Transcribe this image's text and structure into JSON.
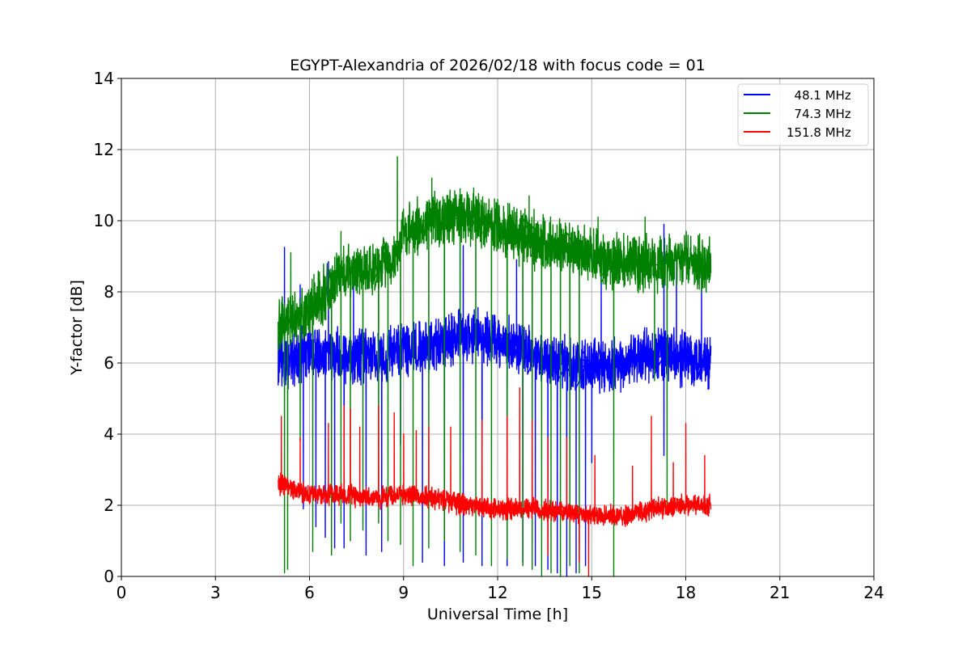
{
  "chart_data": {
    "type": "line",
    "title": "EGYPT-Alexandria of 2026/02/18 with focus code = 01",
    "xlabel": "Universal Time [h]",
    "ylabel": "Y-factor [dB]",
    "xlim": [
      0,
      24
    ],
    "ylim": [
      0,
      14
    ],
    "x_ticks": [
      "0",
      "3",
      "6",
      "9",
      "12",
      "15",
      "18",
      "21",
      "24"
    ],
    "y_ticks": [
      "0",
      "2",
      "4",
      "6",
      "8",
      "10",
      "12",
      "14"
    ],
    "grid": true,
    "legend_position": "top-right",
    "x_start": 5.0,
    "x_end": 18.8,
    "series": [
      {
        "name": "  48.1 MHz",
        "color": "#0000ff",
        "baseline": [
          [
            5.0,
            6.0
          ],
          [
            6.0,
            6.3
          ],
          [
            8.0,
            6.2
          ],
          [
            9.0,
            6.3
          ],
          [
            10.0,
            6.5
          ],
          [
            11.0,
            6.8
          ],
          [
            12.0,
            6.6
          ],
          [
            13.0,
            6.3
          ],
          [
            14.0,
            6.0
          ],
          [
            15.0,
            5.9
          ],
          [
            16.0,
            6.0
          ],
          [
            17.0,
            6.3
          ],
          [
            18.0,
            6.1
          ],
          [
            18.8,
            6.0
          ]
        ],
        "noise": 0.9,
        "spikes": [
          [
            5.2,
            9.25
          ],
          [
            5.7,
            8.2
          ],
          [
            6.6,
            8.85
          ],
          [
            7.4,
            8.5
          ],
          [
            10.9,
            9.3
          ],
          [
            12.6,
            8.9
          ],
          [
            15.3,
            8.7
          ],
          [
            17.3,
            9.9
          ],
          [
            17.7,
            9.0
          ],
          [
            18.5,
            8.6
          ]
        ],
        "dips": [
          [
            5.8,
            1.9
          ],
          [
            6.2,
            1.4
          ],
          [
            6.5,
            1.1
          ],
          [
            6.8,
            0.8
          ],
          [
            7.1,
            0.8
          ],
          [
            7.8,
            0.6
          ],
          [
            8.3,
            0.7
          ],
          [
            8.9,
            3.7
          ],
          [
            9.6,
            0.4
          ],
          [
            10.3,
            0.3
          ],
          [
            10.9,
            0.4
          ],
          [
            11.5,
            0.3
          ],
          [
            12.3,
            0.3
          ],
          [
            12.8,
            0.4
          ],
          [
            13.2,
            0.3
          ],
          [
            13.6,
            0.2
          ],
          [
            13.9,
            0.1
          ],
          [
            14.2,
            0.0
          ],
          [
            14.5,
            0.1
          ],
          [
            14.8,
            0.3
          ],
          [
            15.0,
            3.2
          ],
          [
            17.3,
            3.4
          ]
        ]
      },
      {
        "name": "  74.3 MHz",
        "color": "#008000",
        "baseline": [
          [
            5.0,
            7.0
          ],
          [
            5.5,
            7.3
          ],
          [
            6.0,
            7.5
          ],
          [
            6.5,
            8.0
          ],
          [
            7.0,
            8.5
          ],
          [
            8.0,
            8.6
          ],
          [
            8.8,
            9.0
          ],
          [
            9.0,
            9.7
          ],
          [
            9.5,
            9.9
          ],
          [
            10.0,
            10.1
          ],
          [
            11.0,
            10.1
          ],
          [
            12.0,
            9.8
          ],
          [
            13.0,
            9.5
          ],
          [
            14.0,
            9.3
          ],
          [
            15.0,
            9.0
          ],
          [
            16.0,
            8.8
          ],
          [
            17.0,
            8.8
          ],
          [
            18.0,
            8.9
          ],
          [
            18.8,
            8.7
          ]
        ],
        "noise": 0.9,
        "spikes": [
          [
            5.4,
            9.1
          ],
          [
            7.0,
            9.7
          ],
          [
            8.8,
            11.8
          ],
          [
            9.9,
            11.2
          ],
          [
            10.8,
            10.9
          ],
          [
            12.0,
            10.6
          ],
          [
            13.0,
            10.7
          ],
          [
            15.2,
            10.1
          ],
          [
            16.7,
            10.1
          ]
        ],
        "dips": [
          [
            5.2,
            0.1
          ],
          [
            5.3,
            0.2
          ],
          [
            5.7,
            3.8
          ],
          [
            6.1,
            0.7
          ],
          [
            6.7,
            0.6
          ],
          [
            7.0,
            1.5
          ],
          [
            7.3,
            1.0
          ],
          [
            7.7,
            1.3
          ],
          [
            8.2,
            1.5
          ],
          [
            8.5,
            1.0
          ],
          [
            8.9,
            0.9
          ],
          [
            9.3,
            0.3
          ],
          [
            9.8,
            0.8
          ],
          [
            10.3,
            1.0
          ],
          [
            10.8,
            0.7
          ],
          [
            11.3,
            0.6
          ],
          [
            11.8,
            0.3
          ],
          [
            12.3,
            0.5
          ],
          [
            12.8,
            0.3
          ],
          [
            13.1,
            0.2
          ],
          [
            13.4,
            0.0
          ],
          [
            13.7,
            0.1
          ],
          [
            14.0,
            0.0
          ],
          [
            14.3,
            0.3
          ],
          [
            14.6,
            0.1
          ],
          [
            15.7,
            0.0
          ],
          [
            17.0,
            5.5
          ],
          [
            17.4,
            1.8
          ]
        ]
      },
      {
        "name": "151.8 MHz",
        "color": "#ff0000",
        "baseline": [
          [
            5.0,
            2.6
          ],
          [
            6.0,
            2.3
          ],
          [
            7.0,
            2.3
          ],
          [
            8.0,
            2.2
          ],
          [
            9.0,
            2.3
          ],
          [
            10.0,
            2.2
          ],
          [
            11.0,
            2.0
          ],
          [
            12.0,
            1.9
          ],
          [
            13.0,
            1.9
          ],
          [
            14.0,
            1.8
          ],
          [
            15.0,
            1.7
          ],
          [
            16.0,
            1.7
          ],
          [
            17.0,
            1.9
          ],
          [
            18.0,
            2.0
          ],
          [
            18.8,
            2.0
          ]
        ],
        "noise": 0.35,
        "spikes": [
          [
            5.1,
            4.5
          ],
          [
            5.7,
            3.9
          ],
          [
            6.6,
            4.3
          ],
          [
            7.1,
            4.8
          ],
          [
            7.3,
            4.7
          ],
          [
            7.6,
            4.2
          ],
          [
            8.2,
            4.8
          ],
          [
            8.7,
            4.6
          ],
          [
            9.0,
            4.0
          ],
          [
            9.4,
            4.1
          ],
          [
            9.8,
            4.2
          ],
          [
            10.5,
            4.2
          ],
          [
            11.5,
            4.4
          ],
          [
            12.3,
            4.5
          ],
          [
            12.7,
            5.3
          ],
          [
            13.1,
            4.4
          ],
          [
            13.6,
            3.9
          ],
          [
            14.2,
            3.9
          ],
          [
            15.1,
            3.4
          ],
          [
            16.3,
            3.1
          ],
          [
            16.9,
            4.5
          ],
          [
            17.6,
            3.2
          ],
          [
            18.0,
            4.3
          ],
          [
            18.6,
            3.4
          ]
        ],
        "dips": [
          [
            13.6,
            0.6
          ],
          [
            14.6,
            0.4
          ],
          [
            14.9,
            0.0
          ]
        ]
      }
    ]
  }
}
